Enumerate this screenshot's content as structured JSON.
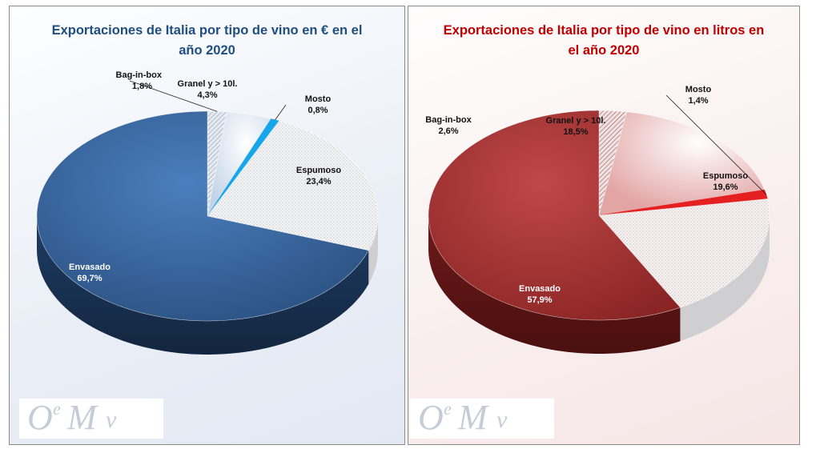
{
  "chart_data": [
    {
      "type": "pie",
      "title": "Exportaciones de Italia por tipo de vino en € en el año 2020",
      "slices": [
        {
          "label": "Bag-in-box",
          "value": 1.8,
          "value_label": "1,8%",
          "color": "#c5cfdc",
          "pattern": "hatch"
        },
        {
          "label": "Granel y > 10l.",
          "value": 4.3,
          "value_label": "4,3%",
          "color": "#d9e3f0",
          "pattern": "glow"
        },
        {
          "label": "Mosto",
          "value": 0.8,
          "value_label": "0,8%",
          "color": "#17a6ea",
          "pattern": "solid"
        },
        {
          "label": "Espumoso",
          "value": 23.4,
          "value_label": "23,4%",
          "color": "#f0f0f0",
          "pattern": "dots"
        },
        {
          "label": "Envasado",
          "value": 69.7,
          "value_label": "69,7%",
          "color": "#3c6ba5",
          "pattern": "gradient"
        }
      ]
    },
    {
      "type": "pie",
      "title": "Exportaciones de Italia por tipo de vino en litros en el año 2020",
      "slices": [
        {
          "label": "Bag-in-box",
          "value": 2.6,
          "value_label": "2,6%",
          "color": "#e5b5b5",
          "pattern": "hatch"
        },
        {
          "label": "Granel y > 10l.",
          "value": 18.5,
          "value_label": "18,5%",
          "color": "#f1c4c4",
          "pattern": "glow"
        },
        {
          "label": "Mosto",
          "value": 1.4,
          "value_label": "1,4%",
          "color": "#e52020",
          "pattern": "solid"
        },
        {
          "label": "Espumoso",
          "value": 19.6,
          "value_label": "19,6%",
          "color": "#f3ecec",
          "pattern": "dots"
        },
        {
          "label": "Envasado",
          "value": 57.9,
          "value_label": "57,9%",
          "color": "#a33232",
          "pattern": "gradient"
        }
      ]
    }
  ],
  "logo": {
    "text": "OeMv"
  }
}
